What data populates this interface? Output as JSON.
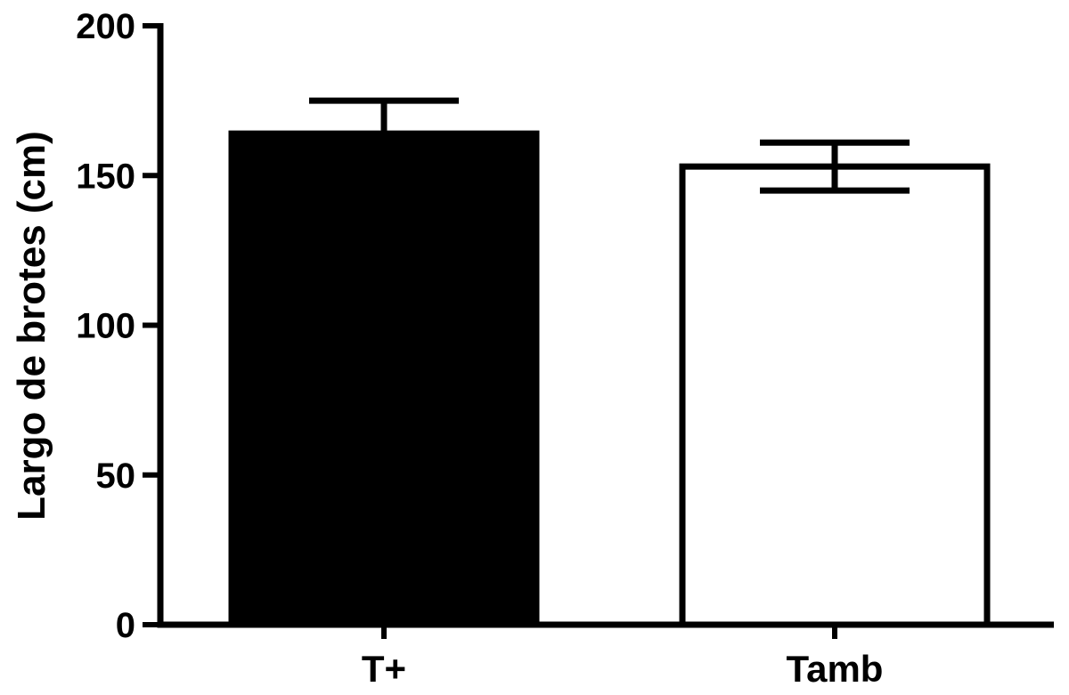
{
  "chart_data": {
    "type": "bar",
    "categories": [
      "T+",
      "Tamb"
    ],
    "values": [
      164,
      153
    ],
    "error": [
      11,
      8
    ],
    "fills": [
      "#000000",
      "#ffffff"
    ],
    "ylabel": "Largo de brotes (cm)",
    "xlabel": "",
    "ylim": [
      0,
      200
    ],
    "yticks": [
      0,
      50,
      100,
      150,
      200
    ],
    "error_style": [
      "upper",
      "both"
    ],
    "grid": false
  }
}
